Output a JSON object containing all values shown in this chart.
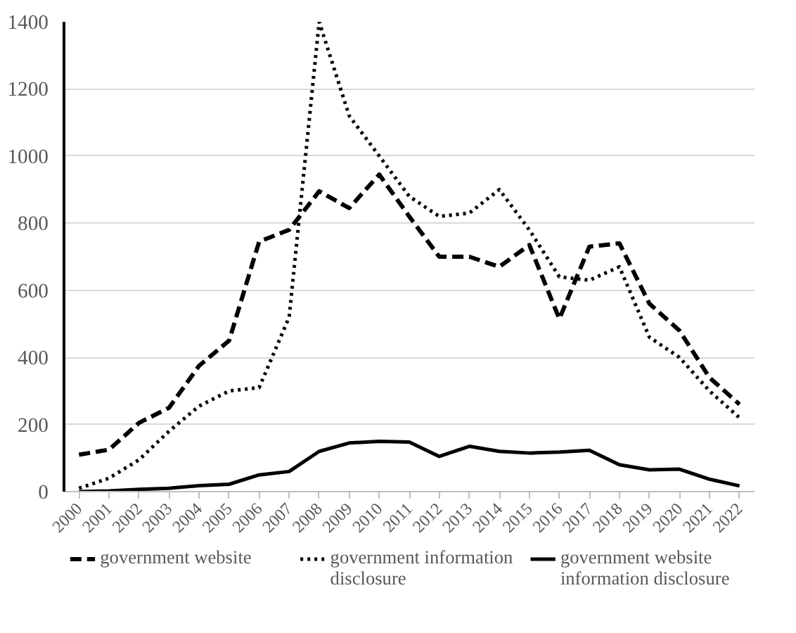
{
  "chart_data": {
    "type": "line",
    "categories": [
      "2000",
      "2001",
      "2002",
      "2003",
      "2004",
      "2005",
      "2006",
      "2007",
      "2008",
      "2009",
      "2010",
      "2011",
      "2012",
      "2013",
      "2014",
      "2015",
      "2016",
      "2017",
      "2018",
      "2019",
      "2020",
      "2021",
      "2022"
    ],
    "series": [
      {
        "name": "government website",
        "color": "#000000",
        "line_style": "dashed",
        "values": [
          110,
          125,
          205,
          250,
          375,
          450,
          745,
          780,
          895,
          845,
          945,
          820,
          700,
          700,
          670,
          735,
          515,
          730,
          740,
          560,
          480,
          340,
          260
        ]
      },
      {
        "name": "government information disclosure",
        "color": "#000000",
        "line_style": "dotted",
        "values": [
          10,
          40,
          95,
          180,
          255,
          300,
          310,
          520,
          1400,
          1120,
          1000,
          880,
          820,
          830,
          900,
          780,
          640,
          630,
          670,
          460,
          400,
          300,
          220
        ]
      },
      {
        "name": "government website information disclosure",
        "color": "#000000",
        "line_style": "solid",
        "values": [
          0,
          2,
          7,
          10,
          18,
          22,
          50,
          60,
          120,
          145,
          150,
          148,
          105,
          135,
          120,
          115,
          118,
          123,
          80,
          65,
          67,
          37,
          17
        ]
      }
    ],
    "ylim": [
      0,
      1400
    ],
    "yticks": [
      0,
      200,
      400,
      600,
      800,
      1000,
      1200,
      1400
    ],
    "grid": "y",
    "legend": "bottom",
    "marker": "none"
  }
}
